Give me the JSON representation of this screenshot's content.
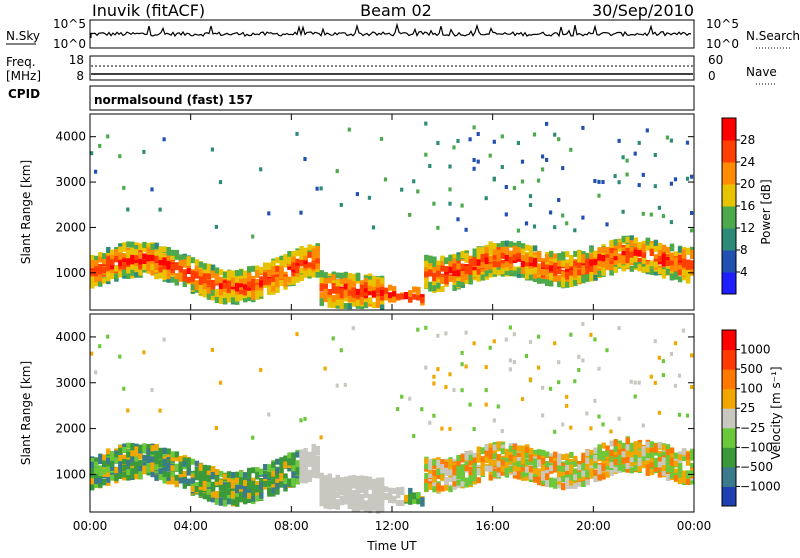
{
  "header": {
    "site": "Inuvik (fitACF)",
    "beam": "Beam 02",
    "date": "30/Sep/2010"
  },
  "strip": {
    "nsky_label": "N.Sky",
    "nsky_ticks": [
      "10^5",
      "10^0"
    ],
    "nsearch_label": "N.Search",
    "freq_label_1": "Freq.",
    "freq_label_2": "[MHz]",
    "freq_ticks": [
      "18",
      "8"
    ],
    "nave_label": "Nave",
    "nave_ticks": [
      "60",
      "0"
    ],
    "cpid_label": "CPID",
    "cpid_value": "normalsound (fast) 157"
  },
  "colors": {
    "power": [
      "#1e1eff",
      "#2050b0",
      "#2e8a78",
      "#4caa4c",
      "#e8c400",
      "#ff8c00",
      "#ff4000",
      "#ff0000"
    ],
    "velocity": [
      "#1e40b0",
      "#3a7a8a",
      "#3a9a3a",
      "#6ac83a",
      "#c8c8c0",
      "#f0a800",
      "#ff7800",
      "#ff3a00",
      "#ff0000"
    ]
  },
  "chart_data": [
    {
      "type": "heatmap",
      "name": "power",
      "ylabel": "Slant Range [km]",
      "ylim": [
        180,
        4500
      ],
      "yticks": [
        "1000",
        "2000",
        "3000",
        "4000"
      ],
      "colorbar_label": "Power [dB]",
      "colorbar_ticks": [
        "4",
        "8",
        "12",
        "16",
        "20",
        "24",
        "28"
      ],
      "grid": false
    },
    {
      "type": "heatmap",
      "name": "velocity",
      "ylabel": "Slant Range [km]",
      "ylim": [
        180,
        4500
      ],
      "yticks": [
        "1000",
        "2000",
        "3000",
        "4000"
      ],
      "colorbar_label": "Velocity [m s⁻¹]",
      "colorbar_ticks": [
        "1000",
        "500",
        "100",
        "25",
        "−25",
        "−100",
        "−500",
        "−1000"
      ],
      "grid": false
    }
  ],
  "x_axis": {
    "ticks": [
      "00:00",
      "04:00",
      "08:00",
      "12:00",
      "16:00",
      "20:00",
      "00:00"
    ],
    "label": "Time UT"
  }
}
